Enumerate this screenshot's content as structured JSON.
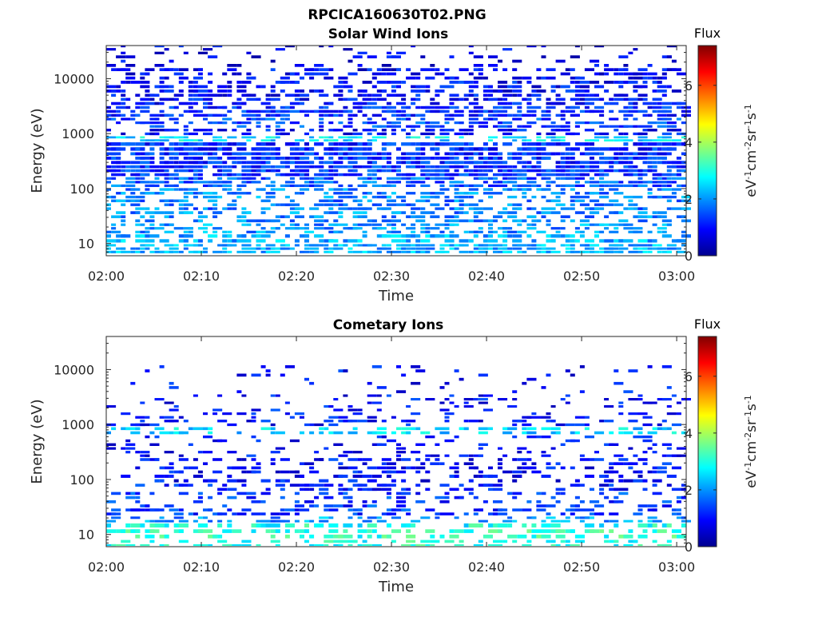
{
  "figure": {
    "title": "RPCICA160630T02.PNG"
  },
  "chart_data": [
    {
      "type": "heatmap",
      "title": "Solar Wind Ions",
      "xlabel": "Time",
      "ylabel": "Energy (eV)",
      "x_ticks": [
        "02:00",
        "02:10",
        "02:20",
        "02:30",
        "02:40",
        "02:50",
        "03:00"
      ],
      "xlim": [
        "02:00",
        "03:01"
      ],
      "y_scale": "log",
      "ylim": [
        6,
        40000
      ],
      "y_ticks": [
        "10",
        "100",
        "1000",
        "10000"
      ],
      "colorbar": {
        "label": "Flux",
        "unit": "eV-1cm-2sr-1s-1",
        "range": [
          0,
          7.4
        ],
        "ticks": [
          "0",
          "2",
          "4",
          "6"
        ],
        "colormap": "jet"
      },
      "profile": {
        "energy_bands_eV": [
          8,
          12,
          18,
          30,
          50,
          80,
          130,
          200,
          350,
          600,
          800,
          1000,
          1500,
          2500,
          4000,
          7000,
          12000,
          20000,
          35000
        ],
        "band_occupancy": [
          0.75,
          0.6,
          0.55,
          0.5,
          0.5,
          0.55,
          0.75,
          0.9,
          0.9,
          0.85,
          0.55,
          0.5,
          0.5,
          0.7,
          0.55,
          0.55,
          0.4,
          0.15,
          0.08
        ],
        "band_mean_flux": [
          2.2,
          2.2,
          2.0,
          1.9,
          1.8,
          1.9,
          1.6,
          1.3,
          1.2,
          1.2,
          2.6,
          1.0,
          1.4,
          1.2,
          1.0,
          1.0,
          0.9,
          0.8,
          0.8
        ]
      }
    },
    {
      "type": "heatmap",
      "title": "Cometary Ions",
      "xlabel": "Time",
      "ylabel": "Energy (eV)",
      "x_ticks": [
        "02:00",
        "02:10",
        "02:20",
        "02:30",
        "02:40",
        "02:50",
        "03:00"
      ],
      "xlim": [
        "02:00",
        "03:01"
      ],
      "y_scale": "log",
      "ylim": [
        6,
        40000
      ],
      "y_ticks": [
        "10",
        "100",
        "1000",
        "10000"
      ],
      "colorbar": {
        "label": "Flux",
        "unit": "eV-1cm-2sr-1s-1",
        "range": [
          0,
          7.4
        ],
        "ticks": [
          "0",
          "2",
          "4",
          "6"
        ],
        "colormap": "jet"
      },
      "profile": {
        "energy_bands_eV": [
          7,
          9,
          11,
          14,
          18,
          25,
          35,
          50,
          70,
          100,
          150,
          200,
          300,
          500,
          800,
          1000,
          1500,
          2500,
          5000,
          10000
        ],
        "band_occupancy": [
          0.45,
          0.5,
          0.5,
          0.45,
          0.3,
          0.4,
          0.25,
          0.3,
          0.35,
          0.3,
          0.25,
          0.3,
          0.2,
          0.15,
          0.45,
          0.25,
          0.2,
          0.15,
          0.08,
          0.05
        ],
        "band_mean_flux": [
          3.0,
          3.1,
          3.1,
          2.9,
          2.0,
          1.3,
          1.3,
          1.3,
          1.1,
          1.0,
          1.0,
          1.0,
          1.0,
          1.0,
          2.5,
          1.0,
          1.0,
          1.0,
          1.0,
          1.0
        ]
      }
    }
  ]
}
